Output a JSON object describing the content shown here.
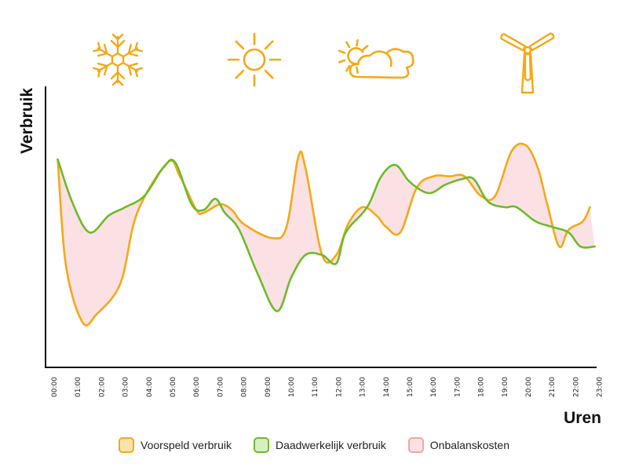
{
  "colors": {
    "forecast": "#f5a816",
    "forecast_fill": "#fde3a9",
    "actual": "#6cbb2a",
    "actual_fill": "#d9eec3",
    "imbalance": "#f2a5a5",
    "imbalance_fill": "#fbe1e4",
    "icon": "#f5a816",
    "axis": "#111111"
  },
  "icons": [
    "snowflake-icon",
    "sun-icon",
    "sun-behind-cloud-icon",
    "wind-turbine-icon"
  ],
  "legend": {
    "forecast": "Voorspeld verbruik",
    "actual": "Daadwerkelijk verbruik",
    "imbalance": "Onbalanskosten"
  },
  "chart_data": {
    "type": "line",
    "title": "",
    "xlabel": "Uren",
    "ylabel": "Verbruik",
    "categories": [
      "00:00",
      "01:00",
      "02:00",
      "03:00",
      "04:00",
      "05:00",
      "06:00",
      "07:00",
      "08:00",
      "09:00",
      "10:00",
      "11:00",
      "12:00",
      "13:00",
      "14:00",
      "15:00",
      "16:00",
      "17:00",
      "18:00",
      "19:00",
      "20:00",
      "21:00",
      "22:00",
      "23:00"
    ],
    "ylim": [
      0,
      100
    ],
    "grid": false,
    "shaded_between": "Onbalanskosten",
    "series": [
      {
        "name": "Voorspeld verbruik",
        "x": [
          0.15,
          0.5,
          1.2,
          1.8,
          2.8,
          3.5,
          4.8,
          5.3,
          6.0,
          6.3,
          7.0,
          7.5,
          8.0,
          9.2,
          9.8,
          10.3,
          10.6,
          11.3,
          11.9,
          12.4,
          13.0,
          13.6,
          14.0,
          14.6,
          15.3,
          16.0,
          16.7,
          17.3,
          18.0,
          18.6,
          19.3,
          19.9,
          20.4,
          20.8,
          21.3,
          21.7,
          22.3,
          22.6
        ],
        "values": [
          74,
          36,
          16,
          19,
          30,
          55,
          73,
          68,
          56,
          55,
          58,
          56,
          51,
          46,
          50,
          75,
          71,
          40,
          40,
          51,
          57,
          54,
          50,
          48,
          64,
          68,
          68,
          68,
          61,
          61,
          77,
          79,
          71,
          58,
          43,
          49,
          52,
          57
        ]
      },
      {
        "name": "Daadwerkelijk verbruik",
        "x": [
          0.15,
          0.8,
          1.5,
          2.3,
          3.0,
          3.8,
          4.6,
          5.1,
          5.8,
          6.3,
          6.8,
          7.2,
          7.8,
          8.6,
          9.4,
          10.0,
          10.6,
          11.3,
          11.9,
          12.3,
          13.2,
          13.8,
          14.4,
          15.0,
          15.8,
          16.5,
          17.2,
          17.7,
          18.3,
          19.0,
          19.5,
          20.3,
          21.0,
          21.7,
          22.2,
          22.8
        ],
        "values": [
          74,
          58,
          48,
          54,
          57,
          61,
          71,
          73,
          58,
          56,
          60,
          55,
          49,
          33,
          20,
          32,
          40,
          40,
          37,
          48,
          57,
          68,
          72,
          66,
          62,
          65,
          67,
          67,
          59,
          57,
          57,
          52,
          50,
          48,
          43,
          43
        ]
      }
    ]
  }
}
